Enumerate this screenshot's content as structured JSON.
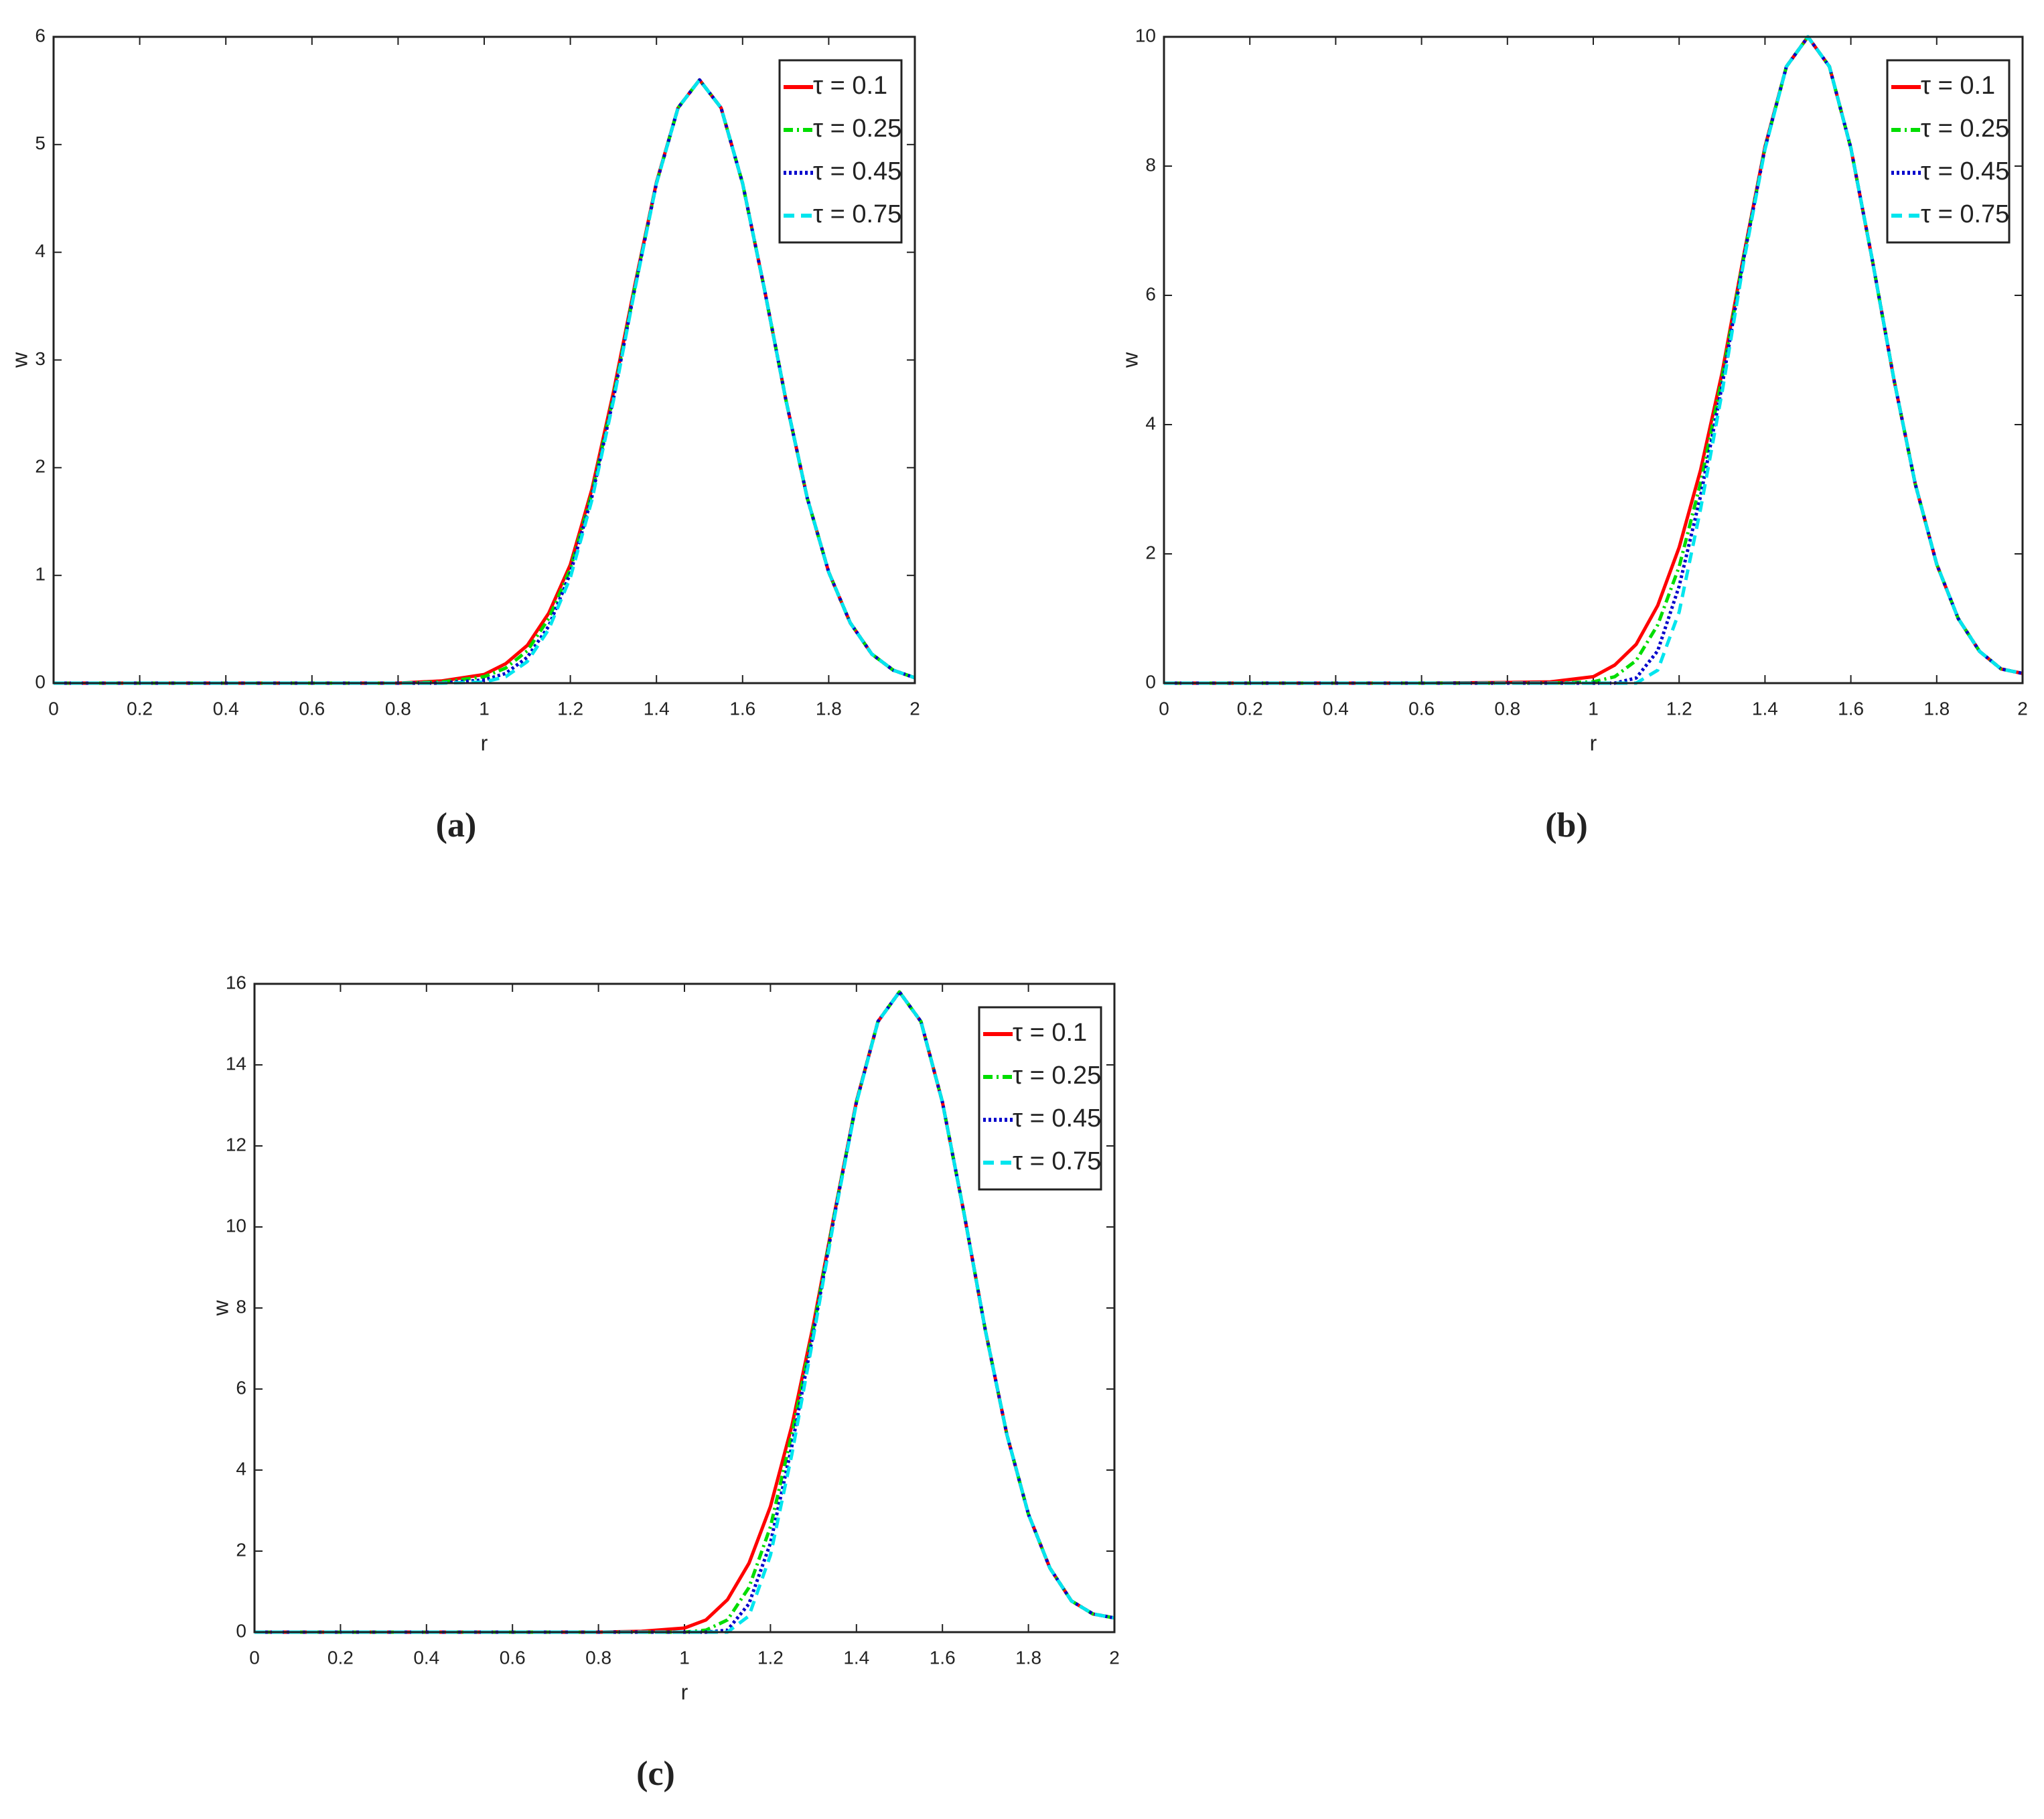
{
  "chart_data": [
    {
      "type": "line",
      "caption": "(a)",
      "xlabel": "r",
      "ylabel": "w",
      "xlim": [
        0,
        2
      ],
      "ylim": [
        0,
        6
      ],
      "xticks": [
        0,
        0.2,
        0.4,
        0.6,
        0.8,
        1,
        1.2,
        1.4,
        1.6,
        1.8,
        2
      ],
      "yticks": [
        0,
        1,
        2,
        3,
        4,
        5,
        6
      ],
      "legend": "upper right",
      "x": [
        0,
        0.2,
        0.4,
        0.6,
        0.8,
        0.9,
        1,
        1.05,
        1.1,
        1.15,
        1.2,
        1.25,
        1.3,
        1.35,
        1.4,
        1.45,
        1.5,
        1.55,
        1.6,
        1.65,
        1.7,
        1.75,
        1.8,
        1.85,
        1.9,
        1.95,
        2
      ],
      "series": [
        {
          "name": "τ = 0.1",
          "color": "#ff0000",
          "linestyle": "solid",
          "values": [
            0,
            0,
            0,
            0,
            0,
            0.02,
            0.08,
            0.18,
            0.35,
            0.65,
            1.1,
            1.8,
            2.7,
            3.7,
            4.65,
            5.34,
            5.6,
            5.34,
            4.64,
            3.67,
            2.64,
            1.72,
            1.03,
            0.56,
            0.27,
            0.12,
            0.05
          ]
        },
        {
          "name": "τ = 0.25",
          "color": "#00dd00",
          "linestyle": "dashdot",
          "values": [
            0,
            0,
            0,
            0,
            0,
            0.01,
            0.06,
            0.14,
            0.3,
            0.6,
            1.06,
            1.76,
            2.66,
            3.68,
            4.64,
            5.34,
            5.6,
            5.34,
            4.64,
            3.67,
            2.64,
            1.72,
            1.03,
            0.56,
            0.27,
            0.12,
            0.05
          ]
        },
        {
          "name": "τ = 0.45",
          "color": "#0000cc",
          "linestyle": "dotted",
          "values": [
            0,
            0,
            0,
            0,
            0,
            0,
            0.03,
            0.09,
            0.24,
            0.53,
            1.02,
            1.73,
            2.64,
            3.67,
            4.64,
            5.34,
            5.6,
            5.34,
            4.64,
            3.67,
            2.64,
            1.72,
            1.03,
            0.56,
            0.27,
            0.12,
            0.05
          ]
        },
        {
          "name": "τ = 0.75",
          "color": "#00e5ee",
          "linestyle": "dashed",
          "values": [
            0,
            0,
            0,
            0,
            0,
            0,
            0.01,
            0.06,
            0.2,
            0.5,
            0.98,
            1.7,
            2.62,
            3.66,
            4.64,
            5.34,
            5.6,
            5.34,
            4.64,
            3.67,
            2.64,
            1.72,
            1.03,
            0.56,
            0.27,
            0.12,
            0.05
          ]
        }
      ]
    },
    {
      "type": "line",
      "caption": "(b)",
      "xlabel": "r",
      "ylabel": "w",
      "xlim": [
        0,
        2
      ],
      "ylim": [
        0,
        10
      ],
      "xticks": [
        0,
        0.2,
        0.4,
        0.6,
        0.8,
        1,
        1.2,
        1.4,
        1.6,
        1.8,
        2
      ],
      "yticks": [
        0,
        2,
        4,
        6,
        8,
        10
      ],
      "legend": "upper right",
      "x": [
        0,
        0.2,
        0.4,
        0.6,
        0.8,
        0.9,
        1,
        1.05,
        1.1,
        1.15,
        1.2,
        1.25,
        1.3,
        1.35,
        1.4,
        1.45,
        1.5,
        1.55,
        1.6,
        1.65,
        1.7,
        1.75,
        1.8,
        1.85,
        1.9,
        1.95,
        2
      ],
      "series": [
        {
          "name": "τ = 0.1",
          "color": "#ff0000",
          "linestyle": "solid",
          "values": [
            0,
            0,
            0,
            0,
            0.01,
            0.02,
            0.1,
            0.28,
            0.6,
            1.2,
            2.1,
            3.3,
            4.8,
            6.6,
            8.3,
            9.54,
            10,
            9.54,
            8.28,
            6.55,
            4.71,
            3.08,
            1.84,
            1,
            0.49,
            0.22,
            0.15
          ]
        },
        {
          "name": "τ = 0.25",
          "color": "#00dd00",
          "linestyle": "dashdot",
          "values": [
            0,
            0,
            0,
            0,
            0,
            0,
            0.02,
            0.1,
            0.35,
            0.9,
            1.8,
            3.1,
            4.72,
            6.57,
            8.28,
            9.54,
            10,
            9.54,
            8.28,
            6.55,
            4.71,
            3.08,
            1.84,
            1,
            0.49,
            0.22,
            0.15
          ]
        },
        {
          "name": "τ = 0.45",
          "color": "#0000cc",
          "linestyle": "dotted",
          "values": [
            0,
            0,
            0,
            0,
            0,
            0,
            0,
            0,
            0.08,
            0.5,
            1.5,
            2.9,
            4.6,
            6.55,
            8.28,
            9.54,
            10,
            9.54,
            8.28,
            6.55,
            4.71,
            3.08,
            1.84,
            1,
            0.49,
            0.22,
            0.15
          ]
        },
        {
          "name": "τ = 0.75",
          "color": "#00e5ee",
          "linestyle": "dashed",
          "values": [
            0,
            0,
            0,
            0,
            0,
            0,
            0,
            0,
            0,
            0.2,
            1.1,
            2.7,
            4.5,
            6.5,
            8.26,
            9.54,
            10,
            9.54,
            8.28,
            6.55,
            4.71,
            3.08,
            1.84,
            1,
            0.49,
            0.22,
            0.15
          ]
        }
      ]
    },
    {
      "type": "line",
      "caption": "(c)",
      "xlabel": "r",
      "ylabel": "w",
      "xlim": [
        0,
        2
      ],
      "ylim": [
        0,
        16
      ],
      "xticks": [
        0,
        0.2,
        0.4,
        0.6,
        0.8,
        1,
        1.2,
        1.4,
        1.6,
        1.8,
        2
      ],
      "yticks": [
        0,
        2,
        4,
        6,
        8,
        10,
        12,
        14,
        16
      ],
      "legend": "upper right",
      "x": [
        0,
        0.2,
        0.4,
        0.6,
        0.8,
        0.9,
        1,
        1.05,
        1.1,
        1.15,
        1.2,
        1.25,
        1.3,
        1.35,
        1.4,
        1.45,
        1.5,
        1.55,
        1.6,
        1.65,
        1.7,
        1.75,
        1.8,
        1.85,
        1.9,
        1.95,
        2
      ],
      "series": [
        {
          "name": "τ = 0.1",
          "color": "#ff0000",
          "linestyle": "solid",
          "values": [
            0,
            0,
            0,
            0,
            0,
            0.02,
            0.1,
            0.3,
            0.8,
            1.7,
            3.1,
            5.1,
            7.6,
            10.4,
            13.1,
            15.07,
            15.8,
            15.07,
            13.08,
            10.35,
            7.44,
            4.87,
            2.91,
            1.58,
            0.77,
            0.45,
            0.35
          ]
        },
        {
          "name": "τ = 0.25",
          "color": "#00dd00",
          "linestyle": "dashdot",
          "values": [
            0,
            0,
            0,
            0,
            0,
            0,
            0,
            0.05,
            0.3,
            1.1,
            2.6,
            4.9,
            7.5,
            10.38,
            13.08,
            15.07,
            15.8,
            15.07,
            13.08,
            10.35,
            7.44,
            4.87,
            2.91,
            1.58,
            0.77,
            0.45,
            0.35
          ]
        },
        {
          "name": "τ = 0.45",
          "color": "#0000cc",
          "linestyle": "dotted",
          "values": [
            0,
            0,
            0,
            0,
            0,
            0,
            0,
            0,
            0.05,
            0.7,
            2.2,
            4.6,
            7.4,
            10.35,
            13.08,
            15.07,
            15.8,
            15.07,
            13.08,
            10.35,
            7.44,
            4.87,
            2.91,
            1.58,
            0.77,
            0.45,
            0.35
          ]
        },
        {
          "name": "τ = 0.75",
          "color": "#00e5ee",
          "linestyle": "dashed",
          "values": [
            0,
            0,
            0,
            0,
            0,
            0,
            0,
            0,
            0,
            0.4,
            1.9,
            4.4,
            7.3,
            10.3,
            13.06,
            15.07,
            15.8,
            15.07,
            13.08,
            10.35,
            7.44,
            4.87,
            2.91,
            1.58,
            0.77,
            0.45,
            0.35
          ]
        }
      ]
    }
  ]
}
